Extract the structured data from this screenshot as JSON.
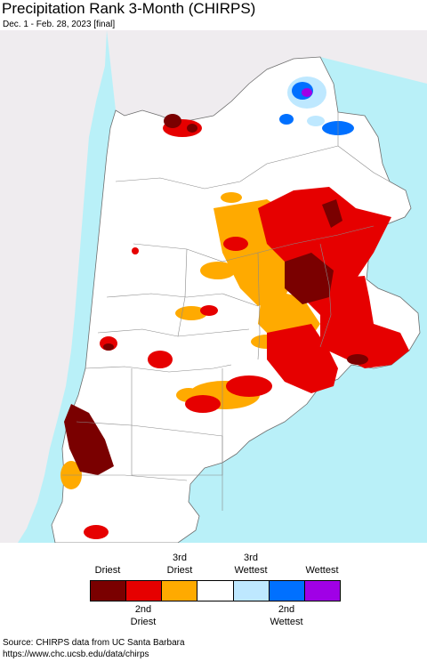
{
  "title": "Precipitation Rank 3-Month (CHIRPS)",
  "subtitle": "Dec. 1 - Feb. 28, 2023 [final]",
  "colors": {
    "ocean": "#b9f0f8",
    "outside_land": "#efecef",
    "land": "#ffffff",
    "border": "#6e6e6e",
    "driest": "#7a0000",
    "second_driest": "#e60000",
    "third_driest": "#ffaa00",
    "normal": "#ffffff",
    "third_wettest": "#bee8ff",
    "second_wettest": "#0070ff",
    "wettest": "#a000e6"
  },
  "legend": {
    "top_labels": [
      {
        "key": "driest",
        "text": "Driest"
      },
      {
        "key": "third_driest",
        "text": "3rd\nDriest"
      },
      {
        "key": "third_wettest",
        "text": "3rd\nWettest"
      },
      {
        "key": "wettest",
        "text": "Wettest"
      }
    ],
    "bottom_labels": [
      {
        "key": "second_driest",
        "text": "2nd\nDriest"
      },
      {
        "key": "second_wettest",
        "text": "2nd\nWettest"
      }
    ],
    "swatches": [
      "driest",
      "second_driest",
      "third_driest",
      "normal",
      "third_wettest",
      "second_wettest",
      "wettest"
    ]
  },
  "source": {
    "line1": "Source: CHIRPS data from UC Santa Barbara",
    "line2": "https://www.chc.ucsb.edu/data/chirps"
  }
}
